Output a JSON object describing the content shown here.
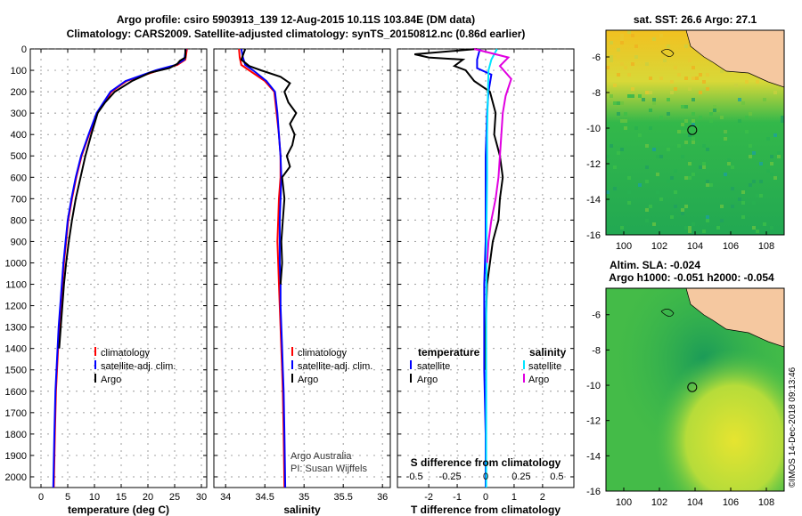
{
  "title_line1": "Argo profile: csiro 5903913_139 12-Aug-2015 10.11S 103.84E (DM data)",
  "title_line2": "Climatology: CARS2009. Satellite-adjusted climatology: synTS_20150812.nc (0.86d earlier)",
  "credit": "©IMOS 14-Dec-2018 09:13:46",
  "colors": {
    "climatology": "#ff0000",
    "satellite": "#0000ff",
    "argo": "#000000",
    "sat_salinity": "#00e5ff",
    "argo_salinity": "#e000e0",
    "land": "#f5c8a0"
  },
  "chart_data": [
    {
      "type": "line",
      "xlabel": "temperature (deg C)",
      "ylabel": "",
      "xlim": [
        -2,
        31
      ],
      "ylim": [
        2050,
        0
      ],
      "x_ticks": [
        "0",
        "5",
        "10",
        "15",
        "20",
        "25",
        "30"
      ],
      "y_ticks": [
        "0",
        "100",
        "200",
        "300",
        "400",
        "500",
        "600",
        "700",
        "800",
        "900",
        "1000",
        "1100",
        "1200",
        "1300",
        "1400",
        "1500",
        "1600",
        "1700",
        "1800",
        "1900",
        "2000"
      ],
      "legend": [
        "climatology",
        "satellite-adj. clim.",
        "Argo"
      ],
      "series": [
        {
          "name": "climatology",
          "color": "#ff0000",
          "x": [
            27.3,
            27.0,
            25.5,
            22.0,
            16.0,
            13.2,
            10.5,
            9.0,
            7.6,
            6.6,
            5.8,
            5.1,
            4.7,
            4.3,
            4.0,
            3.7,
            3.4,
            3.2,
            3.0,
            2.8,
            2.6,
            2.4
          ],
          "y": [
            0,
            50,
            75,
            100,
            150,
            200,
            300,
            400,
            500,
            600,
            700,
            800,
            900,
            1000,
            1100,
            1200,
            1300,
            1400,
            1500,
            1600,
            1800,
            2050
          ]
        },
        {
          "name": "satellite-adj. clim.",
          "color": "#0000ff",
          "x": [
            27.1,
            26.8,
            25.2,
            21.5,
            15.8,
            13.0,
            10.4,
            8.9,
            7.5,
            6.5,
            5.7,
            5.0,
            4.6,
            4.2,
            3.9,
            3.6,
            3.3,
            3.1,
            2.9,
            2.7,
            2.5,
            2.3
          ],
          "y": [
            0,
            50,
            75,
            100,
            150,
            200,
            300,
            400,
            500,
            600,
            700,
            800,
            900,
            1000,
            1100,
            1200,
            1300,
            1400,
            1500,
            1600,
            1800,
            2050
          ]
        },
        {
          "name": "Argo",
          "color": "#000000",
          "x": [
            27.0,
            27.0,
            26.0,
            25.5,
            24.0,
            20.5,
            17.0,
            13.8,
            12.0,
            10.6,
            9.4,
            8.3,
            7.4,
            6.5,
            5.8,
            5.2,
            4.7,
            4.3,
            4.0,
            3.7,
            3.4
          ],
          "y": [
            0,
            40,
            55,
            70,
            90,
            110,
            150,
            200,
            250,
            300,
            400,
            500,
            600,
            700,
            800,
            900,
            1000,
            1100,
            1200,
            1300,
            1400
          ]
        }
      ]
    },
    {
      "type": "line",
      "xlabel": "salinity",
      "xlim": [
        33.85,
        36.1
      ],
      "ylim": [
        2050,
        0
      ],
      "x_ticks": [
        "34",
        "34.5",
        "35",
        "35.5",
        "36"
      ],
      "legend": [
        "climatology",
        "satellite-adj. clim.",
        "Argo"
      ],
      "notes": [
        "Argo Australia",
        "PI: Susan Wijffels"
      ],
      "series": [
        {
          "name": "climatology",
          "color": "#ff0000",
          "x": [
            34.17,
            34.18,
            34.2,
            34.3,
            34.5,
            34.62,
            34.65,
            34.68,
            34.7,
            34.7,
            34.68,
            34.67,
            34.66,
            34.67,
            34.68,
            34.69,
            34.7,
            34.71,
            34.72,
            34.73,
            34.74,
            34.75
          ],
          "y": [
            0,
            40,
            75,
            100,
            150,
            200,
            300,
            400,
            500,
            600,
            700,
            800,
            900,
            1000,
            1100,
            1200,
            1300,
            1400,
            1500,
            1600,
            1800,
            2050
          ]
        },
        {
          "name": "satellite-adj. clim.",
          "color": "#0000ff",
          "x": [
            34.2,
            34.22,
            34.25,
            34.35,
            34.52,
            34.63,
            34.66,
            34.68,
            34.7,
            34.71,
            34.7,
            34.69,
            34.69,
            34.69,
            34.7,
            34.7,
            34.71,
            34.72,
            34.73,
            34.74,
            34.75,
            34.76
          ],
          "y": [
            0,
            40,
            75,
            100,
            150,
            200,
            300,
            400,
            500,
            600,
            700,
            800,
            900,
            1000,
            1100,
            1200,
            1300,
            1400,
            1500,
            1600,
            1800,
            2050
          ]
        },
        {
          "name": "Argo",
          "color": "#000000",
          "x": [
            34.25,
            34.2,
            34.3,
            34.45,
            34.7,
            34.82,
            34.75,
            34.8,
            34.9,
            34.82,
            34.88,
            34.85,
            34.78,
            34.82,
            34.72,
            34.75,
            34.73,
            34.71,
            34.72,
            34.7
          ],
          "y": [
            0,
            50,
            80,
            100,
            130,
            160,
            200,
            250,
            300,
            350,
            400,
            450,
            500,
            550,
            600,
            700,
            800,
            900,
            1000,
            1100
          ]
        }
      ]
    },
    {
      "type": "line",
      "xlabel": "T difference from climatology",
      "xlabel_top": "S difference from climatology",
      "xlim": [
        -3.1,
        3.1
      ],
      "ylim": [
        2050,
        0
      ],
      "x_ticks": [
        "-2",
        "-1",
        "0",
        "1",
        "2"
      ],
      "s_ticks": [
        "-0.5",
        "-0.25",
        "0",
        "0.25",
        "0.5"
      ],
      "legend_left": [
        "temperature",
        "satellite",
        "Argo"
      ],
      "legend_right": [
        "salinity",
        "satellite",
        "Argo"
      ],
      "series": [
        {
          "name": "satellite",
          "color": "#0000ff",
          "x": [
            -0.2,
            -0.3,
            -0.3,
            0.2,
            0.1,
            0.05,
            0,
            0,
            0,
            -0.05,
            -0.05,
            -0.05,
            0,
            0
          ],
          "y": [
            0,
            50,
            90,
            120,
            200,
            300,
            500,
            700,
            900,
            1100,
            1300,
            1500,
            1800,
            2050
          ]
        },
        {
          "name": "Argo",
          "color": "#000000",
          "x": [
            -0.3,
            -2.5,
            -2.0,
            -0.8,
            -1.1,
            -0.7,
            -0.4,
            0.15,
            0.35,
            0.3,
            0.5,
            0.6,
            0.5,
            0.45,
            0.25,
            0.15,
            0.05,
            0,
            0
          ],
          "y": [
            0,
            25,
            40,
            50,
            80,
            100,
            150,
            200,
            300,
            400,
            500,
            600,
            700,
            800,
            900,
            1000,
            1100,
            1300,
            1500
          ]
        },
        {
          "name": "satellite",
          "color": "#00e5ff",
          "x": [
            0.4,
            0.2,
            0.1,
            0.08,
            0.05,
            0.05,
            0.03,
            0.03,
            0.02,
            0.02,
            0.02
          ],
          "y": [
            0,
            50,
            100,
            200,
            400,
            600,
            800,
            1000,
            1300,
            1600,
            2050
          ]
        },
        {
          "name": "Argo",
          "color": "#e000e0",
          "x": [
            -0.4,
            0.8,
            0.5,
            0.9,
            0.7,
            0.6,
            0.55,
            0.5,
            0.45,
            0.35,
            0.2,
            0.1,
            0.05
          ],
          "y": [
            0,
            40,
            80,
            140,
            220,
            300,
            400,
            500,
            600,
            700,
            800,
            900,
            1000
          ]
        }
      ]
    },
    {
      "type": "heatmap",
      "title": "sat. SST: 26.6 Argo: 27.1",
      "xlim": [
        99,
        109
      ],
      "ylim": [
        -16,
        -4.5
      ],
      "x_ticks": [
        "100",
        "102",
        "104",
        "106",
        "108"
      ],
      "y_ticks": [
        "-6",
        "-8",
        "-10",
        "-12",
        "-14",
        "-16"
      ],
      "marker": [
        103.84,
        -10.11
      ]
    },
    {
      "type": "heatmap",
      "title": "Altim. SLA: -0.024",
      "subtitle": "Argo h1000: -0.051 h2000: -0.054",
      "xlim": [
        99,
        109
      ],
      "ylim": [
        -16,
        -4.5
      ],
      "x_ticks": [
        "100",
        "102",
        "104",
        "106",
        "108"
      ],
      "y_ticks": [
        "-6",
        "-8",
        "-10",
        "-12",
        "-14",
        "-16"
      ],
      "marker": [
        103.84,
        -10.11
      ]
    }
  ]
}
